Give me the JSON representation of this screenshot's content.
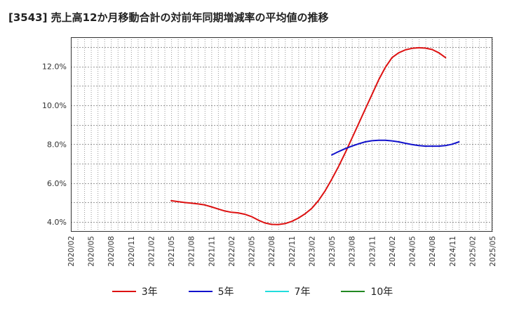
{
  "chart_data": {
    "type": "line",
    "title": "[3543]  売上高12か月移動合計の対前年同期増減率の平均値の推移",
    "xlabel": "",
    "ylabel": "",
    "ylim": [
      3.5,
      13.5
    ],
    "y_ticks": [
      "4.0%",
      "6.0%",
      "8.0%",
      "10.0%",
      "12.0%"
    ],
    "y_tick_values": [
      4,
      6,
      8,
      10,
      12
    ],
    "x_ticks": [
      "2020/02",
      "2020/05",
      "2020/08",
      "2020/11",
      "2021/02",
      "2021/05",
      "2021/08",
      "2021/11",
      "2022/02",
      "2022/05",
      "2022/08",
      "2022/11",
      "2023/02",
      "2023/05",
      "2023/08",
      "2023/11",
      "2024/02",
      "2024/05",
      "2024/08",
      "2024/11",
      "2025/02",
      "2025/05"
    ],
    "grid": true,
    "legend_position": "bottom",
    "series": [
      {
        "name": "3年",
        "color": "#dd1111",
        "start": "2021/05",
        "values": [
          5.1,
          5.05,
          5.0,
          4.97,
          4.93,
          4.88,
          4.78,
          4.67,
          4.57,
          4.5,
          4.47,
          4.4,
          4.28,
          4.1,
          3.95,
          3.88,
          3.87,
          3.92,
          4.03,
          4.2,
          4.42,
          4.7,
          5.1,
          5.6,
          6.2,
          6.85,
          7.55,
          8.3,
          9.05,
          9.8,
          10.55,
          11.3,
          11.95,
          12.45,
          12.7,
          12.85,
          12.93,
          12.96,
          12.94,
          12.87,
          12.7,
          12.45
        ]
      },
      {
        "name": "5年",
        "color": "#1111cc",
        "start": "2023/05",
        "values": [
          7.45,
          7.62,
          7.77,
          7.9,
          8.02,
          8.12,
          8.18,
          8.2,
          8.2,
          8.17,
          8.12,
          8.05,
          7.98,
          7.93,
          7.9,
          7.9,
          7.9,
          7.93,
          8.0,
          8.12
        ]
      },
      {
        "name": "7年",
        "color": "#22dddd",
        "start": "",
        "values": []
      },
      {
        "name": "10年",
        "color": "#228822",
        "start": "",
        "values": []
      }
    ]
  }
}
